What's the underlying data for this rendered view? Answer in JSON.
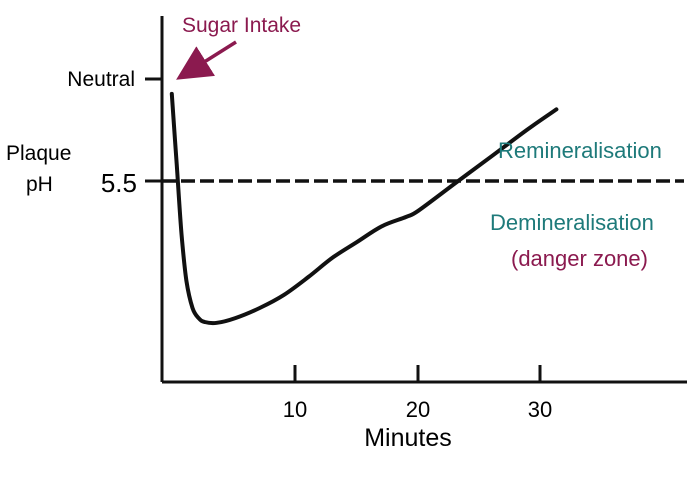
{
  "chart_data": {
    "type": "line",
    "title": "",
    "xlabel": "Minutes",
    "ylabel_lines": [
      "Plaque",
      "pH"
    ],
    "x_ticks": [
      10,
      20,
      30
    ],
    "y_tick_labels": [
      {
        "label": "Neutral",
        "value": 7.0
      },
      {
        "label": "5.5",
        "value": 5.5
      }
    ],
    "threshold": {
      "value": 5.5,
      "style": "dashed"
    },
    "xlim": [
      0,
      43
    ],
    "ylim": [
      3.3,
      8.0
    ],
    "series": [
      {
        "color": "#111111",
        "points": [
          [
            0.8,
            7.0
          ],
          [
            1.2,
            6.1
          ],
          [
            1.6,
            5.2
          ],
          [
            2.0,
            4.6
          ],
          [
            2.5,
            4.25
          ],
          [
            3.0,
            4.12
          ],
          [
            3.5,
            4.07
          ],
          [
            4.5,
            4.06
          ],
          [
            6.0,
            4.12
          ],
          [
            8.0,
            4.25
          ],
          [
            10.0,
            4.42
          ],
          [
            12.0,
            4.65
          ],
          [
            14.0,
            4.9
          ],
          [
            16.0,
            5.1
          ],
          [
            18.0,
            5.3
          ],
          [
            20.0,
            5.42
          ],
          [
            21.0,
            5.5
          ],
          [
            24.0,
            5.85
          ],
          [
            27.0,
            6.2
          ],
          [
            30.0,
            6.55
          ],
          [
            32.3,
            6.8
          ]
        ]
      }
    ],
    "annotations": [
      {
        "id": "sugar",
        "text": "Sugar Intake",
        "color": "#8b1a4f",
        "arrow_to": [
          0.9,
          7.0
        ]
      },
      {
        "id": "remin",
        "text": "Remineralisation",
        "color": "#1e7a7a"
      },
      {
        "id": "demin",
        "text": "Demineralisation",
        "color": "#1e7a7a"
      },
      {
        "id": "danger",
        "text": "(danger zone)",
        "color": "#8b1a4f"
      }
    ]
  }
}
